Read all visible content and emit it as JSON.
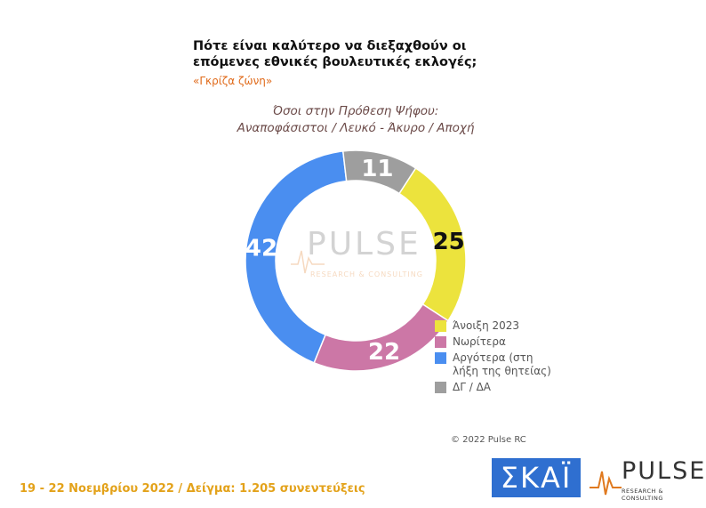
{
  "header": {
    "title_line1": "Πότε είναι καλύτερο να διεξαχθούν οι",
    "title_line2": "επόμενες εθνικές βουλευτικές εκλογές;",
    "zone": "«Γκρίζα ζώνη»"
  },
  "group": {
    "line1": "Όσοι στην Πρόθεση Ψήφου:",
    "line2": "Αναποφάσιστοι / Λευκό - Άκυρο / Αποχή"
  },
  "chart_data": {
    "type": "pie",
    "subtype": "donut",
    "categories": [
      "Άνοιξη 2023",
      "Νωρίτερα",
      "Αργότερα (στη λήξη της θητείας)",
      "ΔΓ / ΔΑ"
    ],
    "values": [
      25,
      22,
      42,
      11
    ],
    "colors": [
      "#ece33d",
      "#cc77a6",
      "#4a8ef0",
      "#9e9e9e"
    ],
    "label_colors": [
      "#111111",
      "#ffffff",
      "#ffffff",
      "#ffffff"
    ],
    "legend_position": "right"
  },
  "legend": {
    "items": [
      {
        "line1": "Άνοιξη 2023",
        "line2": "",
        "color": "#ece33d"
      },
      {
        "line1": "Νωρίτερα",
        "line2": "",
        "color": "#cc77a6"
      },
      {
        "line1": "Αργότερα (στη",
        "line2": "λήξη της θητείας)",
        "color": "#4a8ef0"
      },
      {
        "line1": "ΔΓ / ΔΑ",
        "line2": "",
        "color": "#9e9e9e"
      }
    ]
  },
  "watermark": {
    "word": "PULSE",
    "sub": "RESEARCH & CONSULTING"
  },
  "copyright": "© 2022 Pulse RC",
  "footer": {
    "dates": "19 - 22  Νοεμβρίου  2022  /  Δείγμα:  1.205 συνεντεύξεις"
  },
  "logos": {
    "skai": "ΣΚΑΪ",
    "pulse": "PULSE",
    "pulse_sub": "RESEARCH & CONSULTING"
  }
}
